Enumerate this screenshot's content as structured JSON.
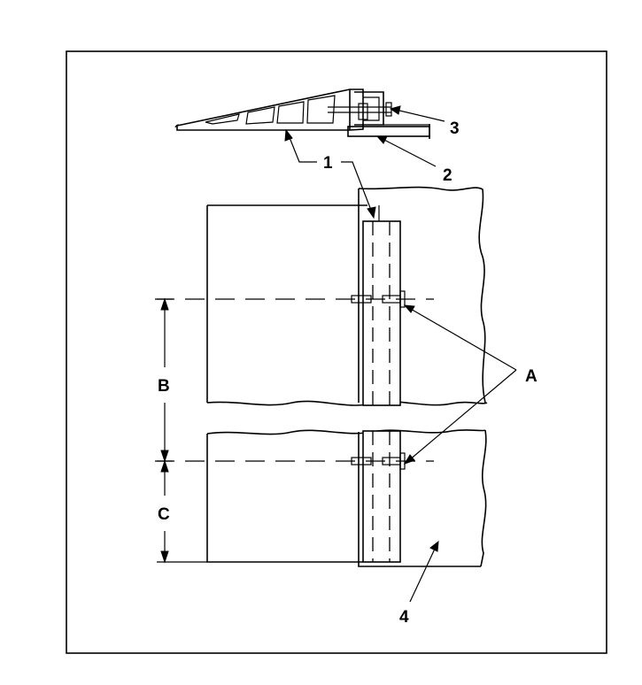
{
  "labels": {
    "callout_1": "1",
    "callout_2": "2",
    "callout_3": "3",
    "callout_4": "4",
    "callout_A": "A",
    "dim_B": "B",
    "dim_C": "C"
  }
}
